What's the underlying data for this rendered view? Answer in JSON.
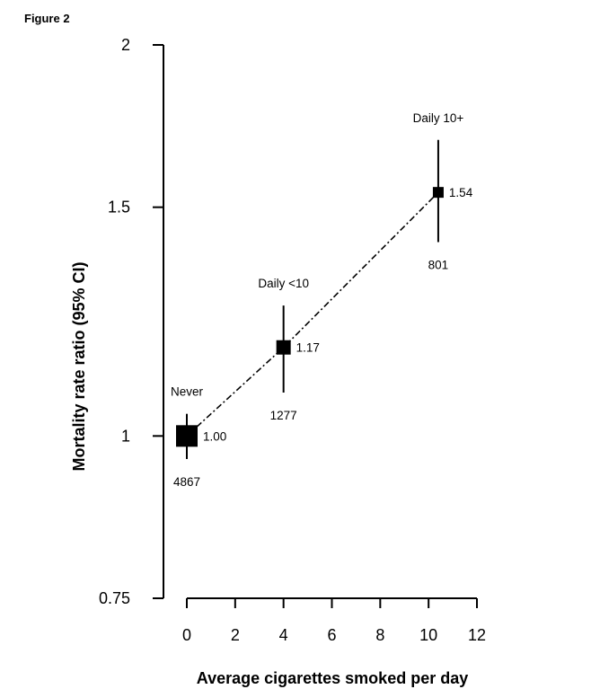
{
  "figure_label": "Figure 2",
  "chart_data": {
    "type": "scatter",
    "title": "",
    "xlabel": "Average cigarettes smoked per day",
    "ylabel": "Mortality rate ratio (95% CI)",
    "xlim": [
      0,
      12
    ],
    "ylim": [
      0.75,
      2
    ],
    "y_scale": "log",
    "x_ticks": [
      0,
      2,
      4,
      6,
      8,
      10,
      12
    ],
    "y_ticks": [
      0.75,
      1,
      1.5,
      2
    ],
    "y_tick_labels": [
      "0.75",
      "1",
      "1.5",
      "2"
    ],
    "grid": false,
    "legend": "none",
    "connector": "dash-dot line",
    "points": [
      {
        "group": "Never",
        "x": 0,
        "y": 1.0,
        "ci_low": 0.96,
        "ci_high": 1.04,
        "value_label": "1.00",
        "n": "4867",
        "marker_size": "large"
      },
      {
        "group": "Daily <10",
        "x": 4,
        "y": 1.17,
        "ci_low": 1.08,
        "ci_high": 1.26,
        "value_label": "1.17",
        "n": "1277",
        "marker_size": "medium"
      },
      {
        "group": "Daily 10+",
        "x": 10.4,
        "y": 1.54,
        "ci_low": 1.41,
        "ci_high": 1.69,
        "value_label": "1.54",
        "n": "801",
        "marker_size": "small"
      }
    ]
  }
}
